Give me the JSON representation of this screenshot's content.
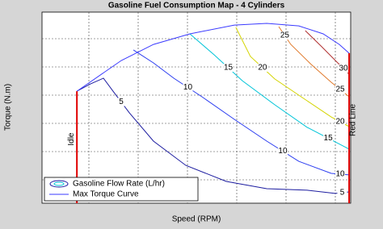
{
  "chart_data": {
    "type": "contour",
    "title": "Gasoline Fuel Consumption Map - 4 Cylinders",
    "x_label": "Speed (RPM)",
    "y_label": "Torque (N.m)",
    "xlim": [
      0,
      100
    ],
    "ylim": [
      0,
      100
    ],
    "grid": true,
    "legend": "lower left",
    "contour_legend": "Gasoline Flow Rate (L/hr)",
    "contours": [
      {
        "level": 5,
        "color": "#1c1ca0",
        "x": [
          11.3,
          15.7,
          19.9,
          23.0,
          28.3,
          36.1,
          46.6,
          59.7,
          72.8,
          85.9,
          95.0,
          99.5
        ],
        "y": [
          58.6,
          62.4,
          65.4,
          58.6,
          47.3,
          32.5,
          19.8,
          11.4,
          7.6,
          6.8,
          5.1,
          5.9
        ]
      },
      {
        "level": 10,
        "color": "#2a3cf0",
        "x": [
          29.6,
          36.1,
          42.7,
          51.8,
          62.3,
          72.8,
          83.2,
          93.7,
          99.5
        ],
        "y": [
          80.2,
          73.4,
          65.4,
          55.7,
          43.9,
          32.5,
          21.9,
          15.6,
          14.8
        ]
      },
      {
        "level": 15,
        "color": "#00c4d8",
        "x": [
          47.9,
          55.8,
          64.9,
          75.4,
          85.9,
          99.5
        ],
        "y": [
          88.6,
          77.6,
          64.1,
          51.5,
          39.7,
          28.3
        ]
      },
      {
        "level": 20,
        "color": "#d4d400",
        "x": [
          62.8,
          67.5,
          75.4,
          85.9,
          93.7,
          99.5
        ],
        "y": [
          92.0,
          76.8,
          65.0,
          53.6,
          45.1,
          40.1
        ]
      },
      {
        "level": 25,
        "color": "#e07a2c",
        "x": [
          76.7,
          80.6,
          87.2,
          93.7,
          99.5
        ],
        "y": [
          92.4,
          83.1,
          72.6,
          63.3,
          55.7
        ]
      },
      {
        "level": 30,
        "color": "#b03030",
        "x": [
          85.3,
          90.6,
          95.8,
          99.5
        ],
        "y": [
          90.3,
          81.9,
          73.4,
          67.5
        ]
      }
    ],
    "series": [
      {
        "name": "Max Torque Curve",
        "color": "#3a3aff",
        "x": [
          11.3,
          25.7,
          36.1,
          47.9,
          62.3,
          72.8,
          83.2,
          91.1,
          96.3,
          99.5
        ],
        "y": [
          58.6,
          74.7,
          83.1,
          88.6,
          93.2,
          94.1,
          92.8,
          88.6,
          83.1,
          78.5
        ]
      }
    ],
    "limits": [
      {
        "label": "Idle",
        "color": "#e00000",
        "x": 11.3,
        "y": [
          0,
          58.6
        ]
      },
      {
        "label": "Red Line",
        "color": "#e00000",
        "x": 99.5,
        "y": [
          0,
          78.5
        ]
      }
    ]
  }
}
